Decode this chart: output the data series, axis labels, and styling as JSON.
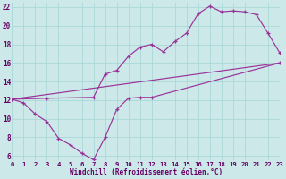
{
  "xlabel": "Windchill (Refroidissement éolien,°C)",
  "bg_color": "#cce8e8",
  "grid_color": "#aad8d8",
  "line_color": "#993399",
  "xlim": [
    0,
    23
  ],
  "ylim": [
    5.5,
    22.5
  ],
  "xtick_vals": [
    0,
    1,
    2,
    3,
    4,
    5,
    6,
    7,
    8,
    9,
    10,
    11,
    12,
    13,
    14,
    15,
    16,
    17,
    18,
    19,
    20,
    21,
    22,
    23
  ],
  "ytick_vals": [
    6,
    8,
    10,
    12,
    14,
    16,
    18,
    20,
    22
  ],
  "curve1_x": [
    0,
    1,
    2,
    3,
    4,
    5,
    6,
    7,
    8,
    9,
    10,
    11,
    12,
    23
  ],
  "curve1_y": [
    12.1,
    11.7,
    10.5,
    9.7,
    7.9,
    7.2,
    6.3,
    5.6,
    8.0,
    11.0,
    12.2,
    12.3,
    12.3,
    16.0
  ],
  "curve2_x": [
    0,
    3,
    7,
    8,
    9,
    10,
    11,
    12,
    13,
    14,
    15,
    16,
    17,
    18,
    19,
    20,
    21,
    22,
    23
  ],
  "curve2_y": [
    12.1,
    12.2,
    12.3,
    14.8,
    15.2,
    16.7,
    17.7,
    18.0,
    17.2,
    18.3,
    19.2,
    21.3,
    22.1,
    21.5,
    21.6,
    21.5,
    21.2,
    19.2,
    17.1
  ],
  "curve3_x": [
    0,
    23
  ],
  "curve3_y": [
    12.1,
    16.0
  ],
  "xlabel_fontsize": 5.5,
  "tick_fontsize": 5.2
}
